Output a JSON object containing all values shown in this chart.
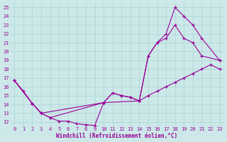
{
  "bg_color": "#cce8e8",
  "line_color": "#990099",
  "grid_color": "#aad4d4",
  "xlabel": "Windchill (Refroidissement éolien,°C)",
  "xlim": [
    -0.5,
    23.5
  ],
  "ylim": [
    11.5,
    25.5
  ],
  "xticks": [
    0,
    1,
    2,
    3,
    4,
    5,
    6,
    7,
    8,
    9,
    10,
    11,
    12,
    13,
    14,
    15,
    16,
    17,
    18,
    19,
    20,
    21,
    22,
    23
  ],
  "yticks": [
    12,
    13,
    14,
    15,
    16,
    17,
    18,
    19,
    20,
    21,
    22,
    23,
    24,
    25
  ],
  "curves": [
    {
      "x": [
        0,
        1,
        2,
        3,
        4,
        5,
        6,
        7,
        8,
        9,
        10,
        11,
        12,
        13,
        14,
        15,
        16,
        17,
        18,
        19,
        20,
        21,
        22,
        23
      ],
      "y": [
        16.7,
        15.5,
        14.1,
        13.0,
        12.5,
        12.1,
        12.1,
        11.8,
        11.7,
        11.6,
        14.2,
        15.3,
        15.0,
        14.8,
        14.4,
        15.0,
        15.5,
        16.0,
        16.5,
        17.0,
        17.5,
        18.0,
        18.5,
        18.0
      ]
    },
    {
      "x": [
        0,
        2,
        3,
        4,
        10,
        11,
        12,
        13,
        14,
        15,
        16,
        17,
        18,
        19,
        20,
        21,
        23
      ],
      "y": [
        16.7,
        14.1,
        13.0,
        12.5,
        14.2,
        15.3,
        15.0,
        14.8,
        14.4,
        19.5,
        21.0,
        21.5,
        23.0,
        21.5,
        21.0,
        19.5,
        19.0
      ]
    },
    {
      "x": [
        0,
        2,
        3,
        10,
        14,
        15,
        16,
        17,
        18,
        19,
        20,
        21,
        23
      ],
      "y": [
        16.7,
        14.1,
        13.0,
        14.2,
        14.4,
        19.5,
        21.0,
        22.0,
        25.0,
        24.0,
        23.0,
        21.5,
        19.0
      ]
    }
  ]
}
